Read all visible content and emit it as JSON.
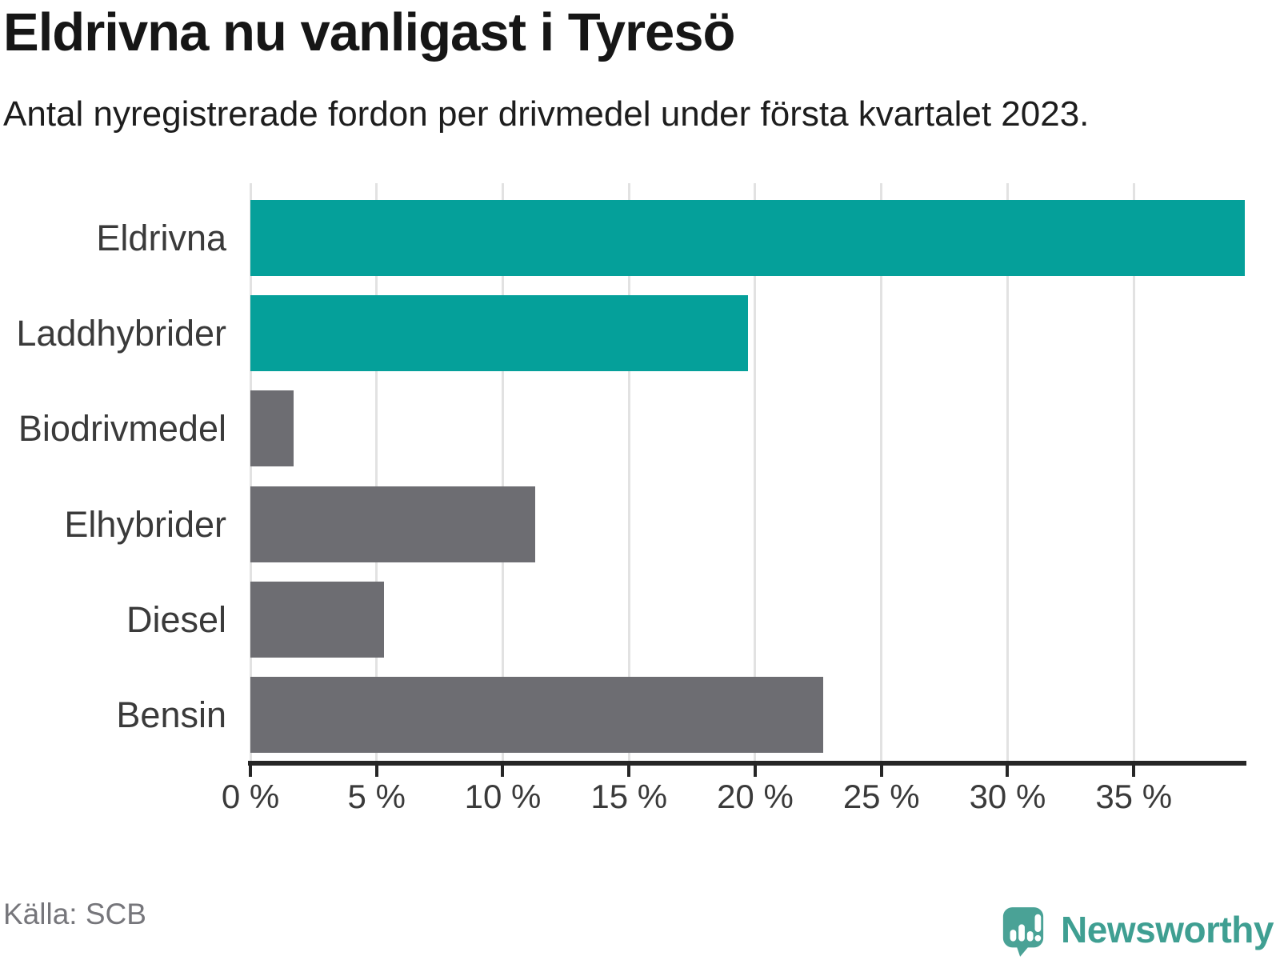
{
  "header": {
    "title": "Eldrivna nu vanligast i Tyresö",
    "subtitle": "Antal nyregistrerade fordon per drivmedel under första kvartalet 2023."
  },
  "footer": {
    "source": "Källa: SCB",
    "brand": "Newsworthy"
  },
  "colors": {
    "accent": "#05a09a",
    "muted": "#6d6d72",
    "axis": "#262626",
    "grid": "#e2e2e2",
    "brand": "#4aa296"
  },
  "chart_data": {
    "type": "bar",
    "orientation": "horizontal",
    "title": "Eldrivna nu vanligast i Tyresö",
    "subtitle": "Antal nyregistrerade fordon per drivmedel under första kvartalet 2023.",
    "categories": [
      "Eldrivna",
      "Laddhybrider",
      "Biodrivmedel",
      "Elhybrider",
      "Diesel",
      "Bensin"
    ],
    "values": [
      39.4,
      19.7,
      1.7,
      11.3,
      5.3,
      22.7
    ],
    "bar_colors": [
      "accent",
      "accent",
      "muted",
      "muted",
      "muted",
      "muted"
    ],
    "unit": "%",
    "xlabel": "",
    "ylabel": "",
    "xlim": [
      0,
      39.4
    ],
    "x_ticks": [
      0,
      5,
      10,
      15,
      20,
      25,
      30,
      35
    ],
    "x_tick_labels": [
      "0 %",
      "5 %",
      "10 %",
      "15 %",
      "20 %",
      "25 %",
      "30 %",
      "35 %"
    ],
    "grid": "vertical",
    "legend": "none",
    "source": "Källa: SCB"
  }
}
